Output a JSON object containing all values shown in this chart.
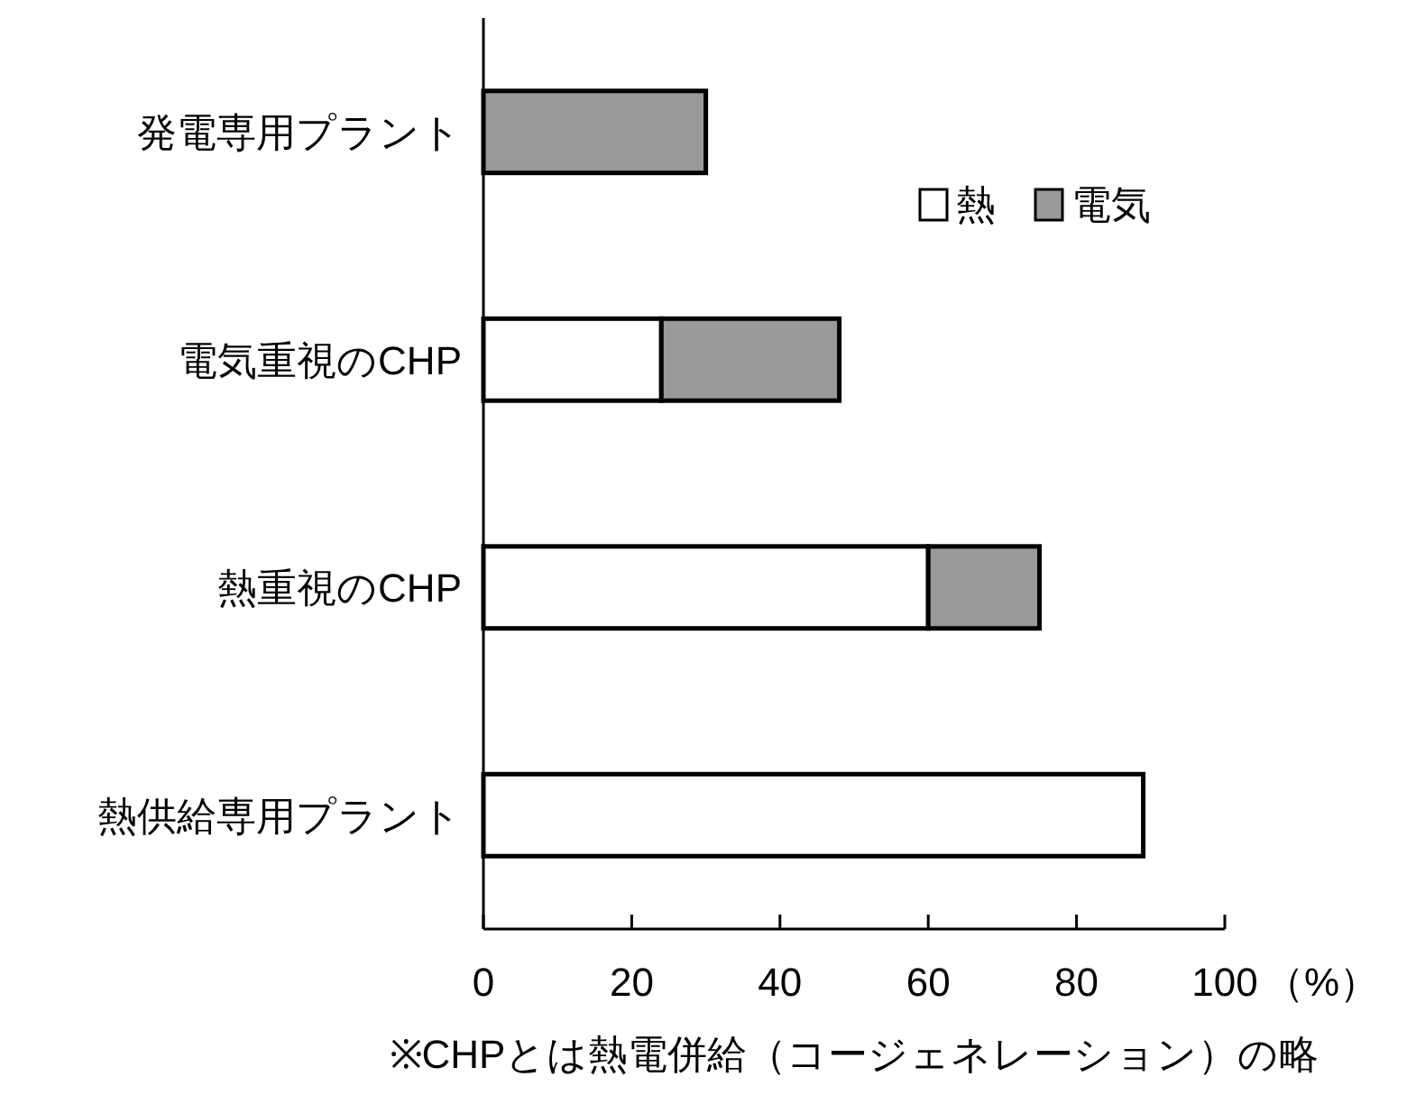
{
  "chart_data": {
    "type": "bar",
    "orientation": "horizontal",
    "stacked": true,
    "categories": [
      "発電専用プラント",
      "電気重視のCHP",
      "熱重視のCHP",
      "熱供給専用プラント"
    ],
    "series": [
      {
        "name": "熱",
        "color": "#ffffff",
        "values": [
          null,
          24,
          60,
          89
        ]
      },
      {
        "name": "電気",
        "color": "#999999",
        "values": [
          30,
          24,
          15,
          null
        ]
      }
    ],
    "xlim": [
      0,
      100
    ],
    "xticks": [
      0,
      20,
      40,
      60,
      80,
      100
    ],
    "xlabel": "（%）",
    "legend": "top right",
    "grid": false,
    "annotations": [
      "※CHPとは熱電併給（コージェネレーション）の略"
    ]
  }
}
